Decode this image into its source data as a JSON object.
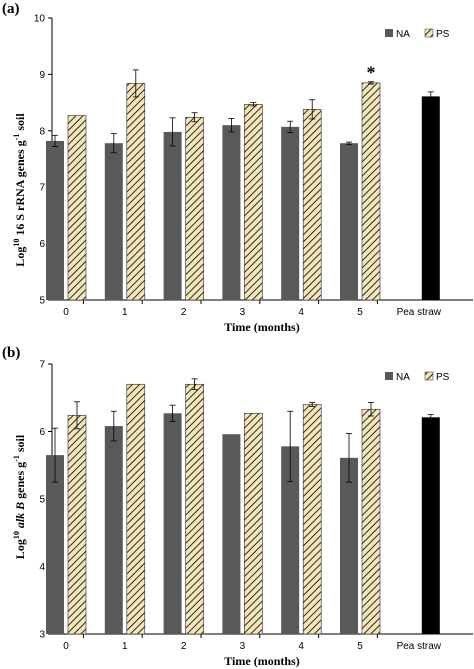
{
  "chart_data": [
    {
      "type": "bar",
      "panel_label": "(a)",
      "categories": [
        "0",
        "1",
        "2",
        "3",
        "4",
        "5",
        "Pea straw"
      ],
      "series": [
        {
          "name": "NA",
          "values": [
            7.82,
            7.78,
            7.98,
            8.1,
            8.07,
            7.78,
            null
          ],
          "errors": [
            0.1,
            0.17,
            0.25,
            0.12,
            0.1,
            0.02,
            null
          ],
          "color": "#595959",
          "pattern": "solid"
        },
        {
          "name": "PS",
          "values": [
            8.27,
            8.84,
            8.24,
            8.47,
            8.38,
            8.85,
            null
          ],
          "errors": [
            0.0,
            0.24,
            0.08,
            0.03,
            0.17,
            0.02,
            null
          ],
          "color": "#f5e6b8",
          "pattern": "hatch"
        },
        {
          "name": "",
          "values": [
            null,
            null,
            null,
            null,
            null,
            null,
            8.61
          ],
          "errors": [
            null,
            null,
            null,
            null,
            null,
            null,
            0.08
          ],
          "color": "#000000",
          "pattern": "solid"
        }
      ],
      "annotations": [
        {
          "text": "*",
          "category": "5"
        }
      ],
      "ylabel_parts": [
        "Log",
        "10",
        " 16 S rRNA genes g",
        "-1",
        " soil"
      ],
      "xlabel": "Time (months)",
      "ylim": [
        5,
        10
      ],
      "yticks": [
        "5",
        "6",
        "7",
        "8",
        "9",
        "10"
      ],
      "legend_position": "top-right",
      "grid": false
    },
    {
      "type": "bar",
      "panel_label": "(b)",
      "categories": [
        "0",
        "1",
        "2",
        "3",
        "4",
        "5",
        "Pea straw"
      ],
      "series": [
        {
          "name": "NA",
          "values": [
            5.65,
            6.08,
            6.27,
            5.96,
            5.78,
            5.61,
            null
          ],
          "errors": [
            0.4,
            0.22,
            0.12,
            0.0,
            0.52,
            0.36,
            null
          ],
          "color": "#595959",
          "pattern": "solid"
        },
        {
          "name": "PS",
          "values": [
            6.24,
            6.7,
            6.7,
            6.27,
            6.4,
            6.33,
            null
          ],
          "errors": [
            0.2,
            0.0,
            0.08,
            0.0,
            0.03,
            0.1,
            null
          ],
          "color": "#f5e6b8",
          "pattern": "hatch"
        },
        {
          "name": "",
          "values": [
            null,
            null,
            null,
            null,
            null,
            null,
            6.21
          ],
          "errors": [
            null,
            null,
            null,
            null,
            null,
            null,
            0.04
          ],
          "color": "#000000",
          "pattern": "solid"
        }
      ],
      "annotations": [],
      "ylabel_parts": [
        "Log",
        "10",
        " ",
        "alk B",
        " genes g",
        "-1",
        " soil"
      ],
      "xlabel": "Time (months)",
      "ylim": [
        3,
        7
      ],
      "yticks": [
        "3",
        "4",
        "5",
        "6",
        "7"
      ],
      "legend_position": "top-right",
      "grid": false
    }
  ]
}
